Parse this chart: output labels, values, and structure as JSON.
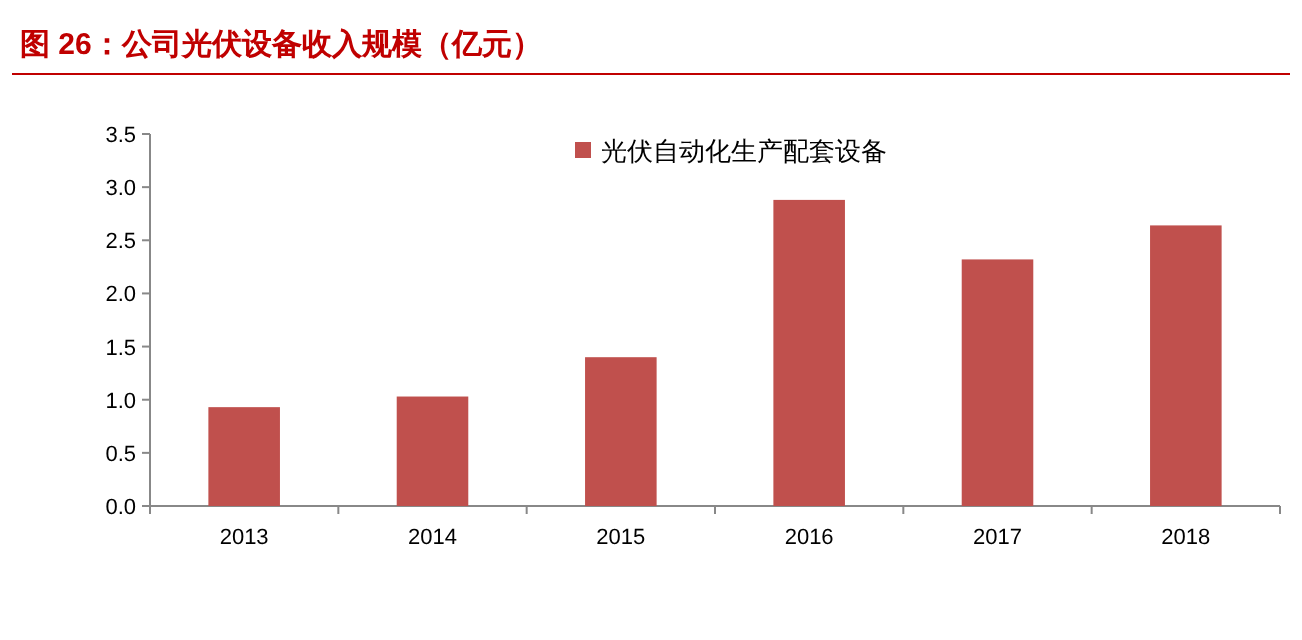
{
  "chart_data": {
    "type": "bar",
    "title": "图 26：公司光伏设备收入规模（亿元）",
    "categories": [
      "2013",
      "2014",
      "2015",
      "2016",
      "2017",
      "2018"
    ],
    "series": [
      {
        "name": "光伏自动化生产配套设备",
        "color": "#c0504d",
        "values": [
          0.93,
          1.03,
          1.4,
          2.88,
          2.32,
          2.64
        ]
      }
    ],
    "ylim": [
      0,
      3.5
    ],
    "yticks": [
      {
        "value": 0,
        "label": "0.0"
      },
      {
        "value": 0.5,
        "label": "0.5"
      },
      {
        "value": 1,
        "label": "1.0"
      },
      {
        "value": 1.5,
        "label": "1.5"
      },
      {
        "value": 2,
        "label": "2.0"
      },
      {
        "value": 2.5,
        "label": "2.5"
      },
      {
        "value": 3,
        "label": "3.0"
      },
      {
        "value": 3.5,
        "label": "3.5"
      }
    ],
    "grid": false,
    "legend": "top"
  }
}
